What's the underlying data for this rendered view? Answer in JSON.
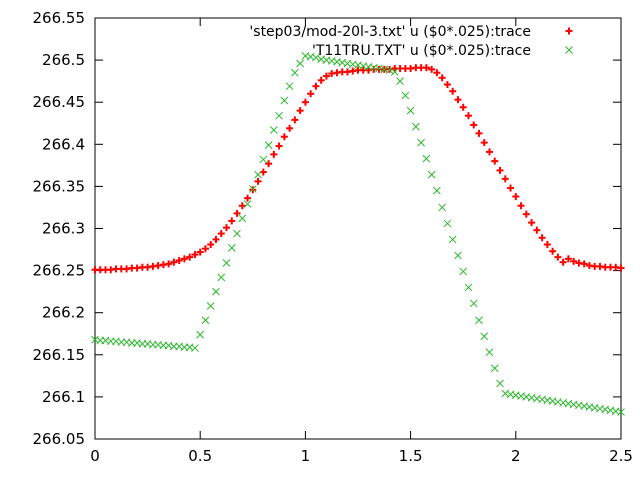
{
  "chart_data": {
    "type": "scatter",
    "title": "",
    "xlabel": "",
    "ylabel": "",
    "xlim": [
      0,
      2.5
    ],
    "ylim": [
      266.05,
      266.55
    ],
    "x_ticks": [
      0,
      0.5,
      1,
      1.5,
      2,
      2.5
    ],
    "x_tick_labels": [
      "0",
      "0.5",
      "1",
      "1.5",
      "2",
      "2.5"
    ],
    "y_ticks": [
      266.05,
      266.1,
      266.15,
      266.2,
      266.25,
      266.3,
      266.35,
      266.4,
      266.45,
      266.5,
      266.55
    ],
    "y_tick_labels": [
      "266.05",
      "266.1",
      "266.15",
      "266.2",
      "266.25",
      "266.3",
      "266.35",
      "266.4",
      "266.45",
      "266.5",
      "266.55"
    ],
    "grid": false,
    "legend_position": "top-right",
    "series": [
      {
        "name": "'step03/mod-20l-3.txt' u ($0*.025):trace",
        "marker": "plus",
        "color": "#ff0000",
        "sample_step": 0.025,
        "y": [
          266.251,
          266.251,
          266.251,
          266.251,
          266.252,
          266.252,
          266.252,
          266.253,
          266.253,
          266.254,
          266.254,
          266.255,
          266.256,
          266.257,
          266.258,
          266.26,
          266.262,
          266.264,
          266.266,
          266.269,
          266.272,
          266.276,
          266.281,
          266.287,
          266.294,
          266.301,
          266.309,
          266.318,
          266.327,
          266.336,
          266.346,
          266.356,
          266.367,
          266.377,
          266.388,
          266.398,
          266.409,
          266.419,
          266.429,
          266.44,
          266.45,
          266.46,
          266.469,
          266.476,
          266.481,
          266.484,
          266.485,
          266.486,
          266.486,
          266.487,
          266.488,
          266.488,
          266.488,
          266.489,
          266.489,
          266.489,
          266.489,
          266.49,
          266.49,
          266.49,
          266.49,
          266.491,
          266.491,
          266.491,
          266.489,
          266.485,
          266.479,
          266.471,
          266.463,
          266.453,
          266.444,
          266.434,
          266.423,
          266.413,
          266.402,
          266.391,
          266.38,
          266.369,
          266.359,
          266.348,
          266.338,
          266.327,
          266.317,
          266.307,
          266.298,
          266.289,
          266.281,
          266.273,
          266.266,
          266.26,
          266.264,
          266.261,
          266.259,
          266.258,
          266.256,
          266.255,
          266.255,
          266.254,
          266.254,
          266.254,
          266.253
        ]
      },
      {
        "name": "'T11TRU.TXT' u ($0*.025):trace",
        "marker": "cross",
        "color": "#2db82d",
        "sample_step": 0.025,
        "y": [
          266.168,
          266.167,
          266.167,
          266.166,
          266.166,
          266.165,
          266.165,
          266.164,
          266.164,
          266.163,
          266.163,
          266.162,
          266.162,
          266.161,
          266.161,
          266.16,
          266.16,
          266.159,
          266.159,
          266.158,
          266.174,
          266.191,
          266.208,
          266.225,
          266.242,
          266.259,
          266.277,
          266.294,
          266.312,
          266.329,
          266.347,
          266.364,
          266.382,
          266.399,
          266.417,
          266.434,
          266.452,
          266.469,
          266.485,
          266.496,
          266.505,
          266.504,
          266.503,
          266.501,
          266.5,
          266.499,
          266.498,
          266.497,
          266.496,
          266.495,
          266.494,
          266.493,
          266.492,
          266.491,
          266.49,
          266.489,
          266.488,
          266.486,
          266.475,
          266.458,
          266.44,
          266.421,
          266.402,
          266.383,
          266.364,
          266.345,
          266.325,
          266.306,
          266.287,
          266.268,
          266.249,
          266.23,
          266.211,
          266.191,
          266.172,
          266.153,
          266.134,
          266.116,
          266.104,
          266.103,
          266.102,
          266.101,
          266.1,
          266.099,
          266.098,
          266.097,
          266.096,
          266.095,
          266.094,
          266.093,
          266.092,
          266.091,
          266.09,
          266.089,
          266.088,
          266.087,
          266.086,
          266.085,
          266.084,
          266.083,
          266.082
        ]
      }
    ]
  }
}
